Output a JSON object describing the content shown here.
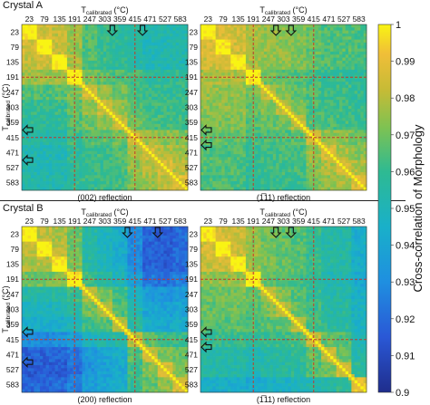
{
  "figure": {
    "crystal_a_label": "Crystal A",
    "crystal_b_label": "Crystal B",
    "colorbar_label": "Cross-correlation of Morphology",
    "colorbar_ticks": [
      "1",
      "0.99",
      "0.98",
      "0.97",
      "0.96",
      "0.95",
      "0.94",
      "0.93",
      "0.92",
      "0.91",
      "0.9"
    ]
  },
  "chart_data": [
    {
      "type": "heatmap",
      "panel": "crystal-a-002",
      "crystal": "Crystal A",
      "title": "(002) reflection",
      "xlabel_main": "T",
      "xlabel_sub": "calibrated",
      "xlabel_unit": "(°C)",
      "ylabel_main": "T",
      "ylabel_sub": "calibrated",
      "ylabel_unit": "(°C)",
      "tick_labels": [
        "23",
        "79",
        "135",
        "191",
        "247",
        "303",
        "359",
        "415",
        "471",
        "527",
        "583"
      ],
      "dashed_lines_at": [
        "191",
        "415"
      ],
      "arrows_top": [
        "359",
        "471"
      ],
      "arrows_left": [
        "359",
        "471"
      ],
      "clim": [
        0.9,
        1.0
      ],
      "block_means": [
        [
          1.0,
          0.985,
          0.982,
          0.976,
          0.966,
          0.96,
          0.958,
          0.956,
          0.952,
          0.953,
          0.954
        ],
        [
          0.985,
          1.0,
          0.984,
          0.976,
          0.965,
          0.96,
          0.957,
          0.955,
          0.951,
          0.952,
          0.953
        ],
        [
          0.982,
          0.984,
          1.0,
          0.977,
          0.966,
          0.961,
          0.958,
          0.955,
          0.951,
          0.952,
          0.953
        ],
        [
          0.976,
          0.976,
          0.977,
          1.0,
          0.972,
          0.968,
          0.965,
          0.962,
          0.958,
          0.958,
          0.959
        ],
        [
          0.966,
          0.965,
          0.966,
          0.972,
          0.985,
          0.975,
          0.97,
          0.965,
          0.96,
          0.96,
          0.96
        ],
        [
          0.96,
          0.96,
          0.961,
          0.968,
          0.975,
          0.983,
          0.974,
          0.967,
          0.962,
          0.961,
          0.961
        ],
        [
          0.958,
          0.957,
          0.958,
          0.965,
          0.97,
          0.974,
          0.982,
          0.97,
          0.965,
          0.964,
          0.963
        ],
        [
          0.956,
          0.955,
          0.955,
          0.962,
          0.965,
          0.967,
          0.97,
          0.984,
          0.976,
          0.974,
          0.972
        ],
        [
          0.952,
          0.951,
          0.951,
          0.958,
          0.96,
          0.962,
          0.965,
          0.976,
          0.985,
          0.979,
          0.976
        ],
        [
          0.953,
          0.952,
          0.952,
          0.958,
          0.96,
          0.961,
          0.964,
          0.974,
          0.979,
          0.986,
          0.98
        ],
        [
          0.954,
          0.953,
          0.953,
          0.959,
          0.96,
          0.961,
          0.963,
          0.972,
          0.976,
          0.98,
          0.988
        ]
      ]
    },
    {
      "type": "heatmap",
      "panel": "crystal-a-111",
      "crystal": "Crystal A",
      "title": "(1̅11) reflection",
      "xlabel_main": "T",
      "xlabel_sub": "calibrated",
      "xlabel_unit": "(°C)",
      "ylabel_main": "",
      "ylabel_sub": "",
      "ylabel_unit": "",
      "tick_labels": [
        "23",
        "79",
        "135",
        "191",
        "247",
        "303",
        "359",
        "415",
        "471",
        "527",
        "583"
      ],
      "dashed_lines_at": [
        "191",
        "415"
      ],
      "arrows_top": [
        "303",
        "359"
      ],
      "arrows_left": [
        "359",
        "415"
      ],
      "clim": [
        0.9,
        1.0
      ],
      "block_means": [
        [
          1.0,
          0.986,
          0.984,
          0.978,
          0.975,
          0.974,
          0.972,
          0.968,
          0.965,
          0.966,
          0.964
        ],
        [
          0.986,
          1.0,
          0.985,
          0.978,
          0.975,
          0.974,
          0.972,
          0.968,
          0.965,
          0.966,
          0.964
        ],
        [
          0.984,
          0.985,
          1.0,
          0.978,
          0.975,
          0.974,
          0.972,
          0.968,
          0.965,
          0.965,
          0.963
        ],
        [
          0.978,
          0.978,
          0.978,
          1.0,
          0.97,
          0.968,
          0.966,
          0.963,
          0.96,
          0.96,
          0.958
        ],
        [
          0.975,
          0.975,
          0.975,
          0.97,
          0.982,
          0.972,
          0.968,
          0.964,
          0.962,
          0.962,
          0.96
        ],
        [
          0.974,
          0.974,
          0.974,
          0.968,
          0.972,
          0.98,
          0.97,
          0.965,
          0.963,
          0.962,
          0.96
        ],
        [
          0.972,
          0.972,
          0.972,
          0.966,
          0.968,
          0.97,
          0.979,
          0.967,
          0.964,
          0.963,
          0.961
        ],
        [
          0.968,
          0.968,
          0.968,
          0.963,
          0.964,
          0.965,
          0.967,
          0.984,
          0.975,
          0.973,
          0.97
        ],
        [
          0.965,
          0.965,
          0.965,
          0.96,
          0.962,
          0.963,
          0.964,
          0.975,
          0.985,
          0.978,
          0.974
        ],
        [
          0.966,
          0.966,
          0.965,
          0.96,
          0.962,
          0.962,
          0.963,
          0.973,
          0.978,
          0.986,
          0.978
        ],
        [
          0.964,
          0.964,
          0.963,
          0.958,
          0.96,
          0.96,
          0.961,
          0.97,
          0.974,
          0.978,
          0.987
        ]
      ]
    },
    {
      "type": "heatmap",
      "panel": "crystal-b-200",
      "crystal": "Crystal B",
      "title": "(200) reflection",
      "xlabel_main": "T",
      "xlabel_sub": "calibrated",
      "xlabel_unit": "(°C)",
      "ylabel_main": "T",
      "ylabel_sub": "calibrated",
      "ylabel_unit": "(°C)",
      "tick_labels": [
        "23",
        "79",
        "135",
        "191",
        "247",
        "303",
        "359",
        "415",
        "471",
        "527",
        "583"
      ],
      "dashed_lines_at": [
        "191",
        "415"
      ],
      "arrows_top": [
        "415",
        "527"
      ],
      "arrows_left": [
        "359",
        "471"
      ],
      "clim": [
        0.9,
        1.0
      ],
      "block_means": [
        [
          1.0,
          0.982,
          0.978,
          0.97,
          0.955,
          0.948,
          0.944,
          0.93,
          0.918,
          0.916,
          0.92
        ],
        [
          0.982,
          1.0,
          0.98,
          0.97,
          0.955,
          0.948,
          0.944,
          0.93,
          0.918,
          0.916,
          0.92
        ],
        [
          0.978,
          0.98,
          1.0,
          0.972,
          0.956,
          0.95,
          0.945,
          0.931,
          0.918,
          0.916,
          0.92
        ],
        [
          0.97,
          0.97,
          0.972,
          1.0,
          0.962,
          0.956,
          0.95,
          0.937,
          0.924,
          0.922,
          0.926
        ],
        [
          0.955,
          0.955,
          0.956,
          0.962,
          0.978,
          0.97,
          0.962,
          0.948,
          0.935,
          0.933,
          0.936
        ],
        [
          0.948,
          0.948,
          0.95,
          0.956,
          0.97,
          0.978,
          0.966,
          0.952,
          0.94,
          0.938,
          0.94
        ],
        [
          0.944,
          0.944,
          0.945,
          0.95,
          0.962,
          0.966,
          0.976,
          0.956,
          0.944,
          0.942,
          0.944
        ],
        [
          0.93,
          0.93,
          0.931,
          0.937,
          0.948,
          0.952,
          0.956,
          0.98,
          0.966,
          0.962,
          0.96
        ],
        [
          0.918,
          0.918,
          0.918,
          0.924,
          0.935,
          0.94,
          0.944,
          0.966,
          0.982,
          0.972,
          0.968
        ],
        [
          0.916,
          0.916,
          0.916,
          0.922,
          0.933,
          0.938,
          0.942,
          0.962,
          0.972,
          0.984,
          0.974
        ],
        [
          0.92,
          0.92,
          0.92,
          0.926,
          0.936,
          0.94,
          0.944,
          0.96,
          0.968,
          0.974,
          0.986
        ]
      ]
    },
    {
      "type": "heatmap",
      "panel": "crystal-b-111",
      "crystal": "Crystal B",
      "title": "(1̅11) reflection",
      "xlabel_main": "T",
      "xlabel_sub": "calibrated",
      "xlabel_unit": "(°C)",
      "ylabel_main": "",
      "ylabel_sub": "",
      "ylabel_unit": "",
      "tick_labels": [
        "23",
        "79",
        "135",
        "191",
        "247",
        "303",
        "359",
        "415",
        "471",
        "527",
        "583"
      ],
      "dashed_lines_at": [
        "191",
        "415"
      ],
      "arrows_top": [
        "303",
        "359"
      ],
      "arrows_left": [
        "359",
        "415"
      ],
      "clim": [
        0.9,
        1.0
      ],
      "block_means": [
        [
          1.0,
          0.985,
          0.983,
          0.975,
          0.97,
          0.968,
          0.966,
          0.96,
          0.955,
          0.955,
          0.945
        ],
        [
          0.985,
          1.0,
          0.984,
          0.975,
          0.97,
          0.968,
          0.966,
          0.96,
          0.955,
          0.955,
          0.945
        ],
        [
          0.983,
          0.984,
          1.0,
          0.976,
          0.971,
          0.969,
          0.967,
          0.961,
          0.955,
          0.955,
          0.945
        ],
        [
          0.975,
          0.975,
          0.976,
          1.0,
          0.968,
          0.966,
          0.963,
          0.958,
          0.952,
          0.952,
          0.942
        ],
        [
          0.97,
          0.97,
          0.971,
          0.968,
          0.98,
          0.972,
          0.966,
          0.96,
          0.955,
          0.955,
          0.946
        ],
        [
          0.968,
          0.968,
          0.969,
          0.966,
          0.972,
          0.98,
          0.968,
          0.962,
          0.956,
          0.956,
          0.947
        ],
        [
          0.966,
          0.966,
          0.967,
          0.963,
          0.966,
          0.968,
          0.978,
          0.964,
          0.958,
          0.957,
          0.948
        ],
        [
          0.96,
          0.96,
          0.961,
          0.958,
          0.96,
          0.962,
          0.964,
          0.982,
          0.968,
          0.965,
          0.952
        ],
        [
          0.955,
          0.955,
          0.955,
          0.952,
          0.955,
          0.956,
          0.958,
          0.968,
          0.982,
          0.97,
          0.955
        ],
        [
          0.955,
          0.955,
          0.955,
          0.952,
          0.955,
          0.956,
          0.957,
          0.965,
          0.97,
          0.984,
          0.958
        ],
        [
          0.945,
          0.945,
          0.945,
          0.942,
          0.946,
          0.947,
          0.948,
          0.952,
          0.955,
          0.958,
          0.99
        ]
      ]
    }
  ]
}
